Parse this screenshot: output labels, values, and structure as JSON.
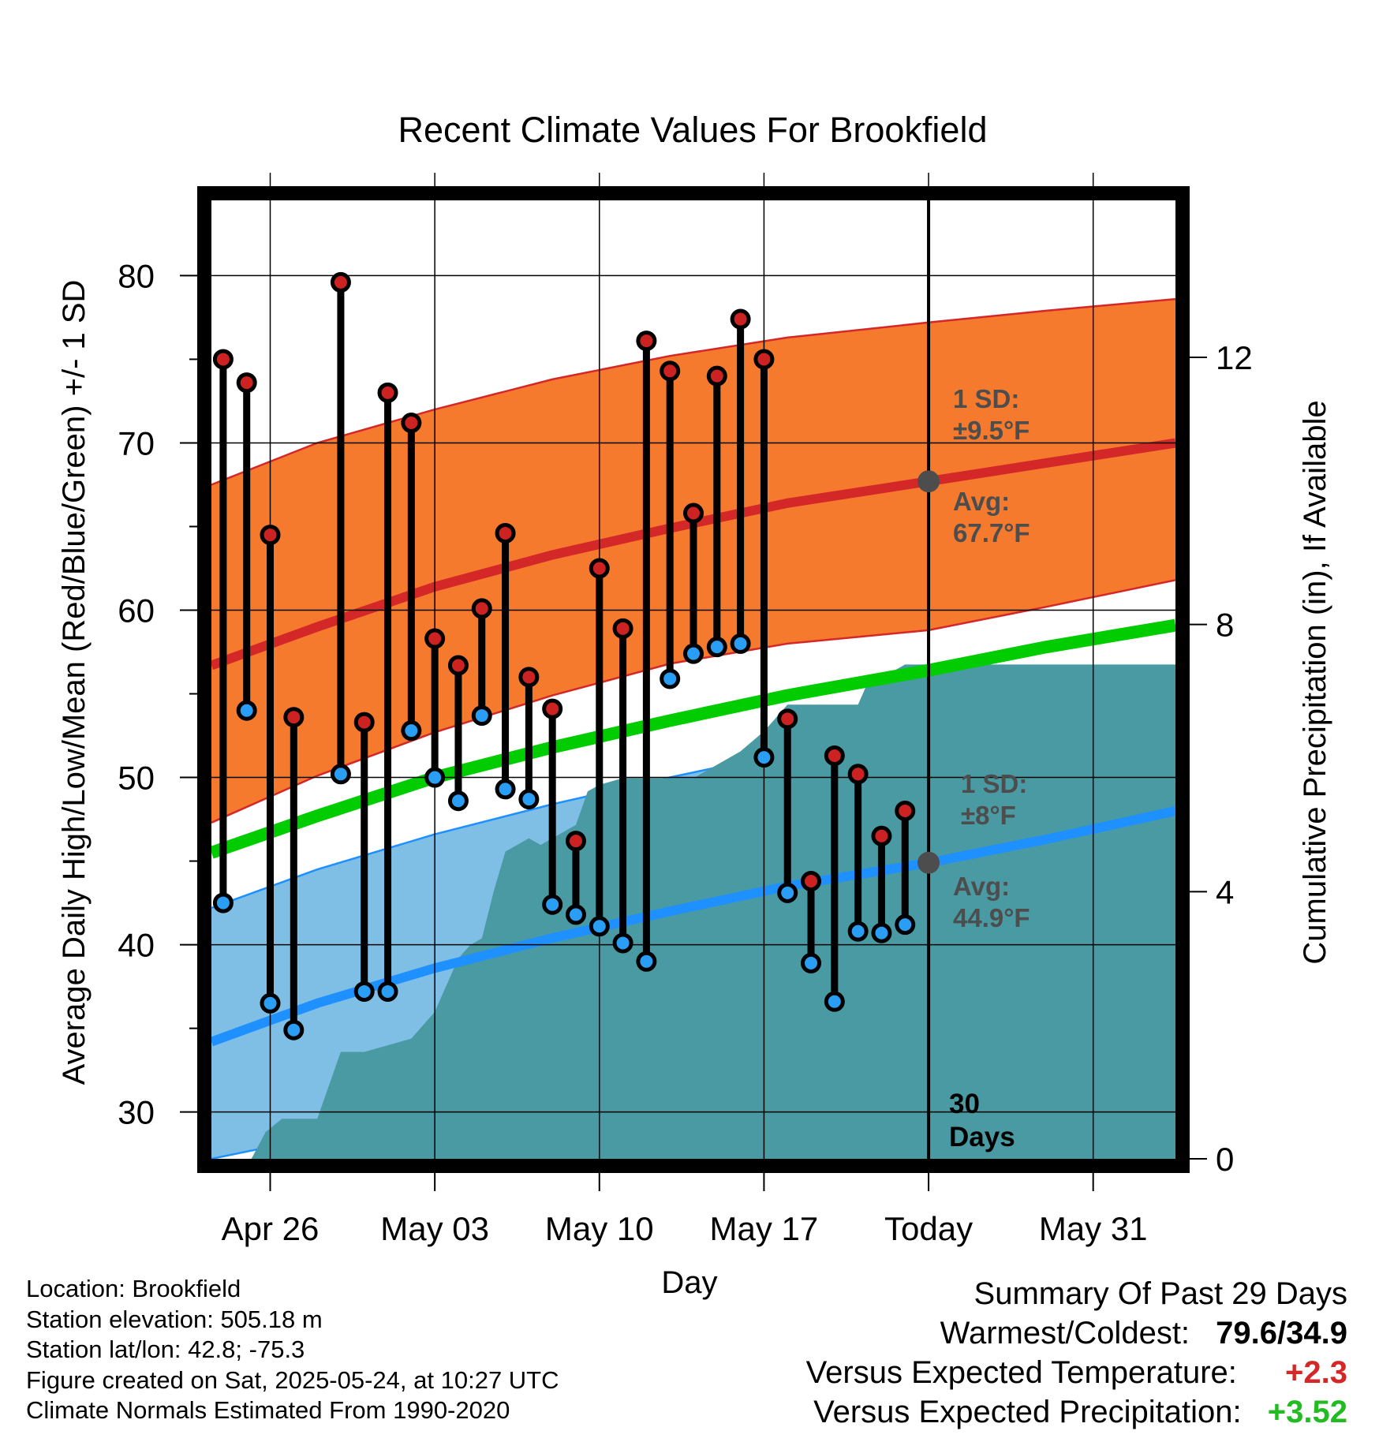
{
  "chart_data": {
    "type": "line",
    "title": "Recent Climate Values For Brookfield",
    "xlabel": "Day",
    "ylabel": "Average Daily High/Low/Mean (Red/Blue/Green) +/- 1 SD",
    "ylabel_right": "Cumulative Precipitation (in), If Available",
    "x_unit": "days since Apr 23",
    "xlim": [
      0.5,
      41.5
    ],
    "ylim": [
      27.2,
      84.5
    ],
    "y2lim": [
      0,
      14.35
    ],
    "x_ticks": [
      {
        "x": 3,
        "label": "Apr 26"
      },
      {
        "x": 10,
        "label": "May 03"
      },
      {
        "x": 17,
        "label": "May 10"
      },
      {
        "x": 24,
        "label": "May 17"
      },
      {
        "x": 31,
        "label": "Today"
      },
      {
        "x": 38,
        "label": "May 31"
      }
    ],
    "y_ticks": [
      30,
      40,
      50,
      60,
      70,
      80
    ],
    "y2_ticks": [
      0,
      4,
      8,
      12
    ],
    "today_x": 31,
    "days_label": [
      "30",
      "Days"
    ],
    "normals": {
      "x": [
        0.5,
        5,
        10,
        15,
        20,
        25,
        31,
        36,
        41.5
      ],
      "high_avg": [
        56.7,
        59.0,
        61.4,
        63.3,
        64.9,
        66.4,
        67.7,
        68.8,
        70.0
      ],
      "high_upper": [
        67.5,
        70.0,
        72.0,
        73.8,
        75.2,
        76.3,
        77.2,
        77.9,
        78.6
      ],
      "high_lower": [
        47.3,
        50.1,
        52.7,
        54.9,
        56.8,
        58.0,
        58.8,
        60.2,
        61.8
      ],
      "low_avg": [
        34.2,
        36.5,
        38.6,
        40.4,
        42.0,
        43.5,
        44.9,
        46.3,
        48.0
      ],
      "low_upper": [
        42.2,
        44.5,
        46.6,
        48.4,
        50.0,
        51.5,
        52.9,
        54.3,
        55.5
      ],
      "low_lower": [
        27.2,
        28.5,
        30.6,
        32.4,
        34.0,
        35.5,
        36.9,
        38.3,
        40.0
      ],
      "mean_avg": [
        45.5,
        47.7,
        50.0,
        51.8,
        53.4,
        54.9,
        56.4,
        57.8,
        59.1
      ]
    },
    "annotations": {
      "high_sd": "1 SD:",
      "high_sd_val": "±9.5°F",
      "high_avg_lbl": "Avg:",
      "high_avg_val": "67.7°F",
      "low_sd": "1 SD:",
      "low_sd_val": "±8°F",
      "low_avg_lbl": "Avg:",
      "low_avg_val": "44.9°F",
      "today_high_avg": 67.7,
      "today_low_avg": 44.9
    },
    "observed": {
      "x": [
        1,
        2,
        3,
        4,
        6,
        7,
        8,
        9,
        10,
        11,
        12,
        13,
        14,
        15,
        16,
        17,
        18,
        19,
        20,
        21,
        22,
        23,
        24,
        25,
        26,
        27,
        28,
        29,
        30
      ],
      "high": [
        75.0,
        73.6,
        64.5,
        53.6,
        79.6,
        53.3,
        73.0,
        71.2,
        58.3,
        56.7,
        60.1,
        64.6,
        56.0,
        54.1,
        46.2,
        62.5,
        58.9,
        76.1,
        74.3,
        65.8,
        74.0,
        77.4,
        75.0,
        53.5,
        43.8,
        51.3,
        50.2,
        46.5,
        48.0
      ],
      "low": [
        42.5,
        54.0,
        36.5,
        34.9,
        50.2,
        37.2,
        37.2,
        52.8,
        50.0,
        48.6,
        53.7,
        49.3,
        48.7,
        42.4,
        41.8,
        41.1,
        40.1,
        39.0,
        55.9,
        57.4,
        57.8,
        58.0,
        51.2,
        43.1,
        38.9,
        36.6,
        40.8,
        40.7,
        41.2
      ]
    },
    "precipitation": {
      "x": [
        2.2,
        2.8,
        3.5,
        4.5,
        5.0,
        5.5,
        6.0,
        6.5,
        7.0,
        8.0,
        9.0,
        9.5,
        10.0,
        10.5,
        11.0,
        11.5,
        12.0,
        12.5,
        13.0,
        13.5,
        14.0,
        14.5,
        15.0,
        16.0,
        16.5,
        17.0,
        18.0,
        19.0,
        20.0,
        21.0,
        22.0,
        23.0,
        24.0,
        24.5,
        25.0,
        26.0,
        27.0,
        28.0,
        28.5,
        29.0,
        30.0,
        31.0,
        41.5
      ],
      "cumulative": [
        0,
        0.4,
        0.6,
        0.6,
        0.6,
        1.1,
        1.6,
        1.6,
        1.6,
        1.7,
        1.8,
        2.0,
        2.2,
        2.6,
        3.0,
        3.2,
        3.3,
        4.0,
        4.6,
        4.7,
        4.8,
        4.7,
        4.8,
        5.0,
        5.5,
        5.6,
        5.7,
        5.7,
        5.7,
        5.7,
        5.9,
        6.1,
        6.4,
        6.6,
        6.8,
        6.8,
        6.8,
        6.8,
        7.2,
        7.2,
        7.4,
        7.4,
        7.4
      ]
    },
    "colors": {
      "high_band": "#f57a2e",
      "high_line": "#d42828",
      "low_band": "#7fbfe6",
      "low_line": "#1e90ff",
      "mean_line": "#00cc00",
      "precip": "#4a9aa3",
      "high_marker": "#cc2222",
      "low_marker": "#2a9df4"
    }
  },
  "info": {
    "location": "Location: Brookfield",
    "elevation": "Station elevation: 505.18 m",
    "latlon": "Station lat/lon: 42.8; -75.3",
    "created": "Figure created on Sat, 2025-05-24, at 10:27 UTC",
    "normals": "Climate Normals Estimated From 1990-2020"
  },
  "summary": {
    "title": "Summary Of Past 29 Days",
    "warm_label": "Warmest/Coldest:",
    "warm_value": "79.6/34.9",
    "temp_label": "Versus Expected Temperature:",
    "temp_value": "+2.3",
    "temp_color": "#d42828",
    "precip_label": "Versus Expected Precipitation:",
    "precip_value": "+3.52",
    "precip_color": "#22bb22"
  }
}
